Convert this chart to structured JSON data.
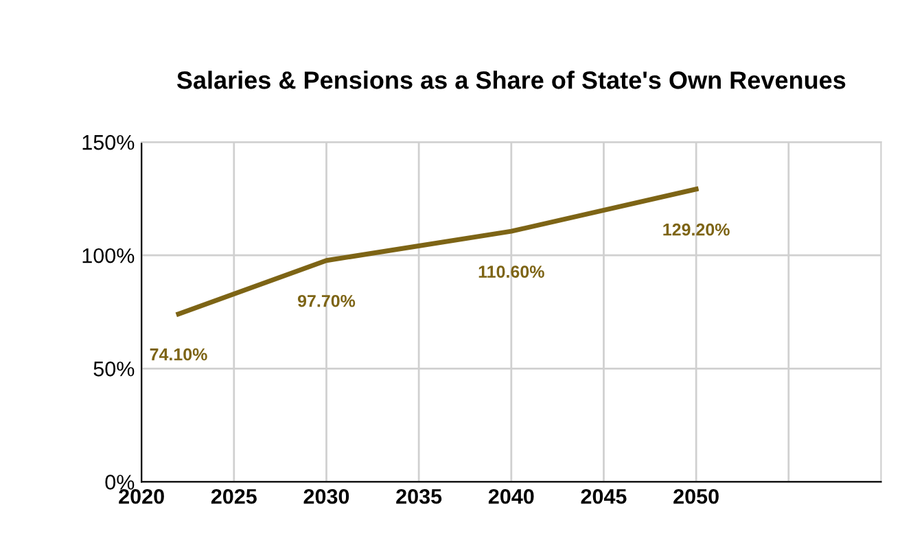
{
  "chart_data": {
    "type": "line",
    "title": "Salaries & Pensions as a Share of State's Own Revenues",
    "x": [
      2022,
      2030,
      2040,
      2050
    ],
    "series": [
      {
        "color": "#7d6415",
        "values": [
          74.1,
          97.7,
          110.6,
          129.2
        ],
        "value_labels": [
          "74.10%",
          "97.70%",
          "110.60%",
          "129.20%"
        ]
      }
    ],
    "xlim": [
      2020,
      2060
    ],
    "xticks": [
      2020,
      2025,
      2030,
      2035,
      2040,
      2045,
      2050,
      {
        "value": 2055,
        "label": null
      }
    ],
    "ylim": [
      0,
      150
    ],
    "yticks": [
      {
        "value": 0,
        "label": "0%"
      },
      {
        "value": 50,
        "label": "50%"
      },
      {
        "value": 100,
        "label": "100%"
      },
      {
        "value": 150,
        "label": "150%"
      }
    ],
    "grid": true,
    "legend": false,
    "marker": "none",
    "line_style": "solid"
  }
}
